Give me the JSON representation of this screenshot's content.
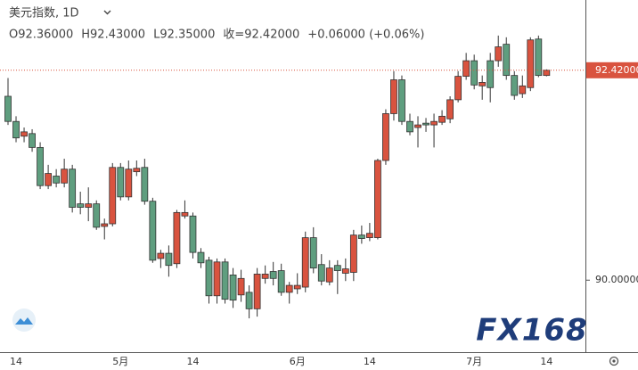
{
  "chart_data": {
    "type": "candlestick",
    "title": "美元指数, 1D",
    "legend": [
      "O92.36000",
      "H92.43000",
      "L92.35000",
      "收=92.42000",
      "+0.06000 (+0.06%)"
    ],
    "watermark": "FX168",
    "up_color": "#d9533f",
    "down_color": "#5f9e7f",
    "grid": false,
    "ylim": [
      89.17,
      93.23
    ],
    "yticks": [
      {
        "value": 90,
        "label": "90.00000"
      }
    ],
    "last_price": {
      "value": 92.42,
      "label": "92.42000"
    },
    "categories": [
      null,
      "14",
      null,
      null,
      null,
      null,
      null,
      null,
      null,
      null,
      null,
      null,
      null,
      null,
      "5月",
      null,
      null,
      null,
      null,
      null,
      null,
      null,
      null,
      "14",
      null,
      null,
      null,
      null,
      null,
      null,
      null,
      null,
      null,
      null,
      null,
      null,
      "6月",
      null,
      null,
      null,
      null,
      null,
      null,
      null,
      null,
      "14",
      null,
      null,
      null,
      null,
      null,
      null,
      null,
      null,
      null,
      null,
      null,
      null,
      "7月",
      null,
      null,
      null,
      null,
      null,
      null,
      null,
      null,
      "14"
    ],
    "open": [
      92.12,
      91.83,
      91.66,
      91.69,
      91.53,
      91.09,
      91.2,
      91.12,
      91.28,
      90.88,
      90.84,
      90.88,
      90.62,
      90.65,
      91.3,
      90.96,
      91.25,
      91.3,
      90.91,
      90.25,
      90.31,
      90.19,
      90.74,
      90.74,
      90.32,
      90.23,
      89.82,
      90.21,
      90.06,
      89.83,
      89.86,
      89.67,
      90.02,
      90.1,
      90.11,
      89.86,
      89.9,
      89.92,
      90.49,
      90.18,
      89.98,
      90.17,
      90.08,
      90.09,
      90.52,
      90.49,
      90.49,
      91.38,
      91.92,
      92.31,
      91.83,
      91.76,
      91.81,
      91.79,
      91.82,
      91.86,
      92.08,
      92.35,
      92.53,
      92.24,
      92.53,
      92.53,
      92.72,
      92.36,
      92.15,
      92.22,
      92.78,
      92.36
    ],
    "high": [
      92.33,
      91.89,
      91.76,
      91.74,
      91.59,
      91.33,
      91.28,
      91.4,
      91.33,
      91.02,
      91.07,
      90.92,
      90.71,
      91.35,
      91.35,
      91.38,
      91.38,
      91.4,
      90.95,
      90.35,
      90.4,
      90.81,
      90.92,
      90.78,
      90.37,
      90.27,
      90.25,
      90.25,
      90.14,
      90.12,
      89.94,
      90.14,
      90.17,
      90.21,
      90.19,
      89.98,
      90.08,
      90.56,
      90.61,
      90.3,
      90.23,
      90.23,
      90.25,
      90.58,
      90.63,
      90.66,
      91.4,
      91.97,
      92.41,
      92.36,
      91.92,
      91.89,
      91.87,
      91.92,
      91.96,
      92.12,
      92.41,
      92.62,
      92.6,
      92.36,
      92.62,
      92.82,
      92.8,
      92.41,
      92.36,
      92.8,
      92.82,
      92.43
    ],
    "low": [
      91.79,
      91.59,
      91.59,
      91.48,
      91.05,
      91.05,
      91.07,
      91.07,
      90.78,
      90.76,
      90.68,
      90.58,
      90.47,
      90.62,
      90.92,
      90.92,
      91.2,
      90.87,
      90.2,
      90.14,
      90.04,
      90.14,
      90.71,
      90.25,
      90.14,
      89.73,
      89.73,
      89.73,
      89.68,
      89.75,
      89.56,
      89.58,
      89.96,
      89.94,
      89.82,
      89.73,
      89.84,
      89.86,
      90.08,
      89.94,
      89.94,
      89.84,
      89.99,
      89.99,
      90.42,
      90.45,
      90.47,
      91.33,
      91.84,
      91.79,
      91.67,
      91.53,
      91.71,
      91.53,
      91.79,
      91.81,
      92.05,
      92.31,
      92.2,
      92.08,
      92.05,
      92.46,
      92.31,
      92.08,
      92.1,
      92.18,
      92.34,
      92.35
    ],
    "close": [
      91.83,
      91.64,
      91.71,
      91.53,
      91.09,
      91.23,
      91.12,
      91.28,
      90.84,
      90.84,
      90.88,
      90.61,
      90.65,
      91.3,
      90.96,
      91.28,
      91.29,
      90.91,
      90.23,
      90.31,
      90.17,
      90.78,
      90.78,
      90.32,
      90.2,
      89.82,
      90.21,
      89.78,
      89.77,
      90.02,
      89.67,
      90.07,
      90.07,
      90.02,
      89.86,
      89.94,
      89.94,
      90.49,
      90.14,
      89.99,
      90.14,
      90.11,
      90.13,
      90.52,
      90.48,
      90.54,
      91.38,
      91.92,
      92.31,
      91.83,
      91.71,
      91.79,
      91.79,
      91.83,
      91.89,
      92.08,
      92.35,
      92.53,
      92.25,
      92.28,
      92.22,
      92.69,
      92.36,
      92.13,
      92.24,
      92.77,
      92.36,
      92.42
    ]
  }
}
